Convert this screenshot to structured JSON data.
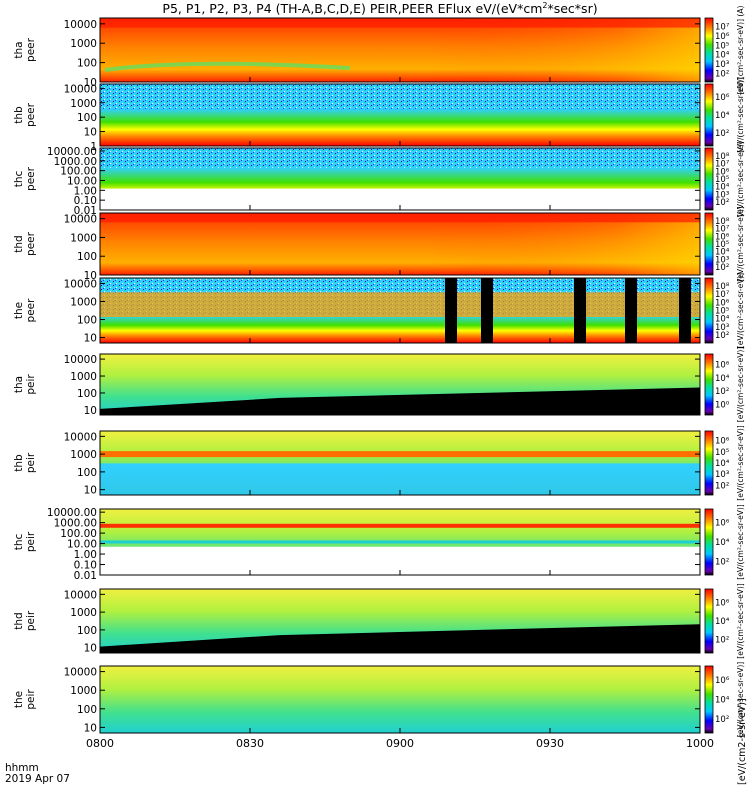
{
  "chart_data": {
    "type": "heatmap",
    "title": "P5, P1, P2, P3, P4 (TH-A,B,C,D,E) PEIR,PEER EFlux eV/(eV*cm",
    "title_sup": "2",
    "title_tail": "*sec*sr)",
    "x": {
      "ticks": [
        "0800",
        "0830",
        "0900",
        "0930",
        "1000"
      ],
      "range": [
        "08:00",
        "10:00"
      ],
      "label_top": "hhmm",
      "label_bottom": "2019 Apr 07"
    },
    "y_scale": "log",
    "colorbar_scale": "log",
    "colorbar_label": "[eV/(cm2-s-sr-eV)]",
    "panels": [
      {
        "probe": "tha",
        "species": "peer",
        "ylim": [
          10,
          20000
        ],
        "y_ticks": [
          "10000",
          "1000",
          "100",
          "10"
        ],
        "cbar_ticks": [
          "10⁷",
          "10⁶",
          "10⁵",
          "10⁴",
          "10³",
          "10²"
        ],
        "cbar_label": "[eV/(cm²-sec-sr-eV)] (A)"
      },
      {
        "probe": "thb",
        "species": "peer",
        "ylim": [
          1,
          20000
        ],
        "y_ticks": [
          "10000",
          "1000",
          "100",
          "10",
          "1"
        ],
        "cbar_ticks": [
          "10⁶",
          "10⁴",
          "10²"
        ],
        "cbar_label": "[eV/(cm²-sec-sr-eV)]"
      },
      {
        "probe": "thc",
        "species": "peer",
        "ylim": [
          0.01,
          20000
        ],
        "y_ticks": [
          "10000.00",
          "1000.00",
          "100.00",
          "10.00",
          "1.00",
          "0.10",
          "0.01"
        ],
        "cbar_ticks": [
          "10⁸",
          "10⁷",
          "10⁶",
          "10⁵",
          "10⁴",
          "10³",
          "10²"
        ],
        "cbar_label": "[eV/(cm²-sec-sr-eV)]"
      },
      {
        "probe": "thd",
        "species": "peer",
        "ylim": [
          10,
          20000
        ],
        "y_ticks": [
          "10000",
          "1000",
          "100",
          "10"
        ],
        "cbar_ticks": [
          "10⁸",
          "10⁷",
          "10⁶",
          "10⁵",
          "10⁴",
          "10³",
          "10²"
        ],
        "cbar_label": "[eV/(cm²-sec-sr-eV)]"
      },
      {
        "probe": "the",
        "species": "peer",
        "ylim": [
          5,
          20000
        ],
        "y_ticks": [
          "10000",
          "1000",
          "100",
          "10"
        ],
        "cbar_ticks": [
          "10⁸",
          "10⁷",
          "10⁶",
          "10⁵",
          "10⁴",
          "10³",
          "10²"
        ],
        "cbar_label": "[eV/(cm²-sec-sr-eV)]"
      },
      {
        "probe": "tha",
        "species": "peir",
        "ylim": [
          5,
          20000
        ],
        "y_ticks": [
          "10000",
          "1000",
          "100",
          "10"
        ],
        "cbar_ticks": [
          "10⁶",
          "10⁴",
          "10²",
          "10⁰"
        ],
        "cbar_label": "[eV/(cm²-sec-sr-eV)]"
      },
      {
        "probe": "thb",
        "species": "peir",
        "ylim": [
          5,
          20000
        ],
        "y_ticks": [
          "10000",
          "1000",
          "100",
          "10"
        ],
        "cbar_ticks": [
          "10⁶",
          "10⁵",
          "10⁴",
          "10³",
          "10²"
        ],
        "cbar_label": "[eV/(cm²-sec-sr-eV)]"
      },
      {
        "probe": "thc",
        "species": "peir",
        "ylim": [
          0.01,
          20000
        ],
        "y_ticks": [
          "10000.00",
          "1000.00",
          "100.00",
          "10.00",
          "1.00",
          "0.10",
          "0.01"
        ],
        "cbar_ticks": [
          "10⁶",
          "10⁴",
          "10²"
        ],
        "cbar_label": "[eV/(cm²-sec-sr-eV)]"
      },
      {
        "probe": "thd",
        "species": "peir",
        "ylim": [
          5,
          20000
        ],
        "y_ticks": [
          "10000",
          "1000",
          "100",
          "10"
        ],
        "cbar_ticks": [
          "10⁶",
          "10⁴",
          "10²"
        ],
        "cbar_label": "[eV/(cm²-sec-sr-eV)]"
      },
      {
        "probe": "the",
        "species": "peir",
        "ylim": [
          5,
          20000
        ],
        "y_ticks": [
          "10000",
          "1000",
          "100",
          "10"
        ],
        "cbar_ticks": [
          "10⁶",
          "10⁴",
          "10²"
        ],
        "cbar_label": "[eV/(cm²-sec-sr-eV)]"
      }
    ]
  }
}
